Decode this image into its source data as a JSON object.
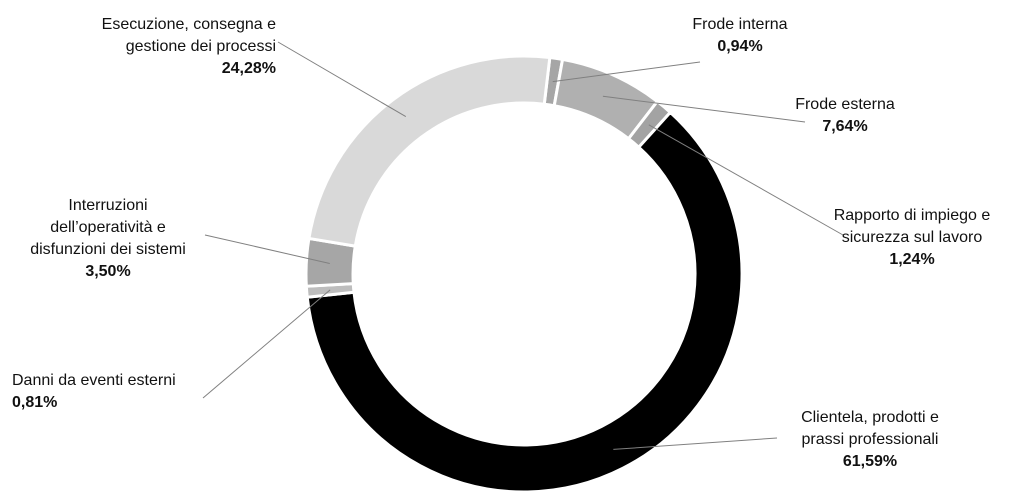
{
  "chart_data": {
    "type": "pie",
    "variant": "donut",
    "title": "",
    "legend": "none",
    "start_angle_deg": 6.8,
    "direction": "clockwise",
    "slices": [
      {
        "label": "Frode interna",
        "value": 0.94,
        "value_label": "0,94%",
        "color": "#a6a6a6"
      },
      {
        "label": "Frode esterna",
        "value": 7.64,
        "value_label": "7,64%",
        "color": "#b0b0b0"
      },
      {
        "label": "Rapporto di impiego e\nsicurezza sul lavoro",
        "value": 1.24,
        "value_label": "1,24%",
        "color": "#a3a3a3"
      },
      {
        "label": "Clientela, prodotti e\nprassi professionali",
        "value": 61.59,
        "value_label": "61,59%",
        "color": "#000000"
      },
      {
        "label": "Danni da eventi esterni",
        "value": 0.81,
        "value_label": "0,81%",
        "color": "#bdbdbd"
      },
      {
        "label": "Interruzioni\ndell’operatività e\ndisfunzioni dei sistemi",
        "value": 3.5,
        "value_label": "3,50%",
        "color": "#a6a6a6"
      },
      {
        "label": "Esecuzione, consegna e\ngestione dei processi",
        "value": 24.28,
        "value_label": "24,28%",
        "color": "#d9d9d9"
      }
    ]
  }
}
